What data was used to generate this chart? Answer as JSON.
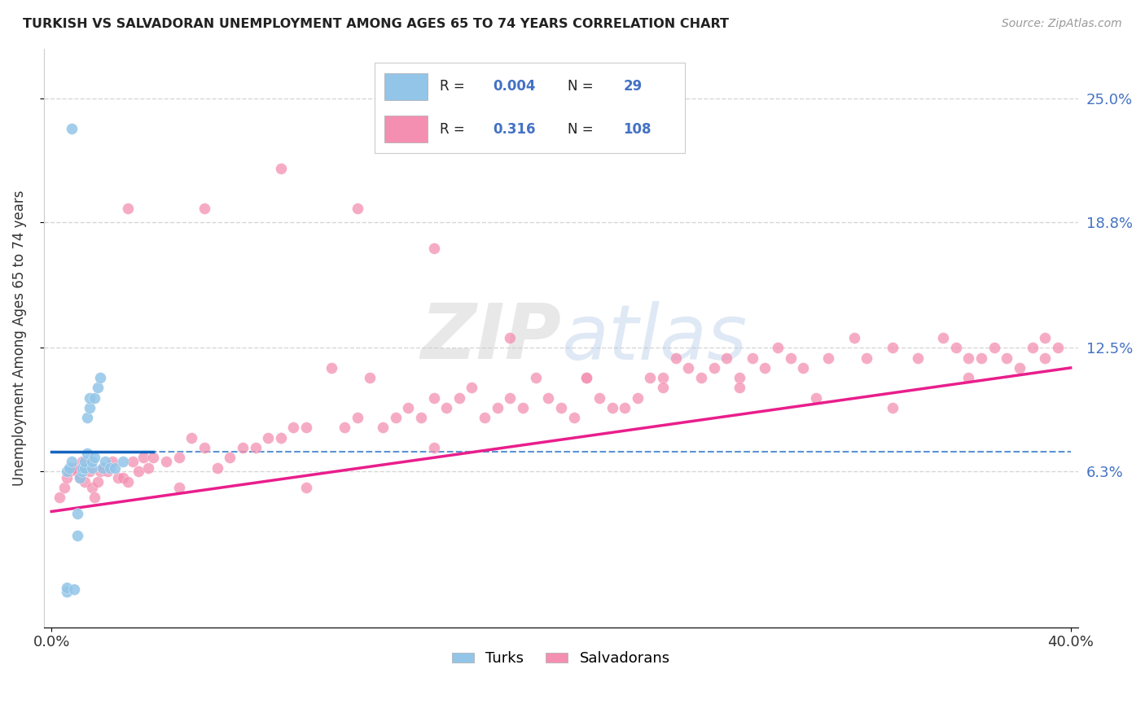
{
  "title": "TURKISH VS SALVADORAN UNEMPLOYMENT AMONG AGES 65 TO 74 YEARS CORRELATION CHART",
  "source": "Source: ZipAtlas.com",
  "ylabel": "Unemployment Among Ages 65 to 74 years",
  "xlim": [
    0.0,
    0.4
  ],
  "ylim": [
    -0.015,
    0.275
  ],
  "ytick_labels": [
    "6.3%",
    "12.5%",
    "18.8%",
    "25.0%"
  ],
  "ytick_values": [
    0.063,
    0.125,
    0.188,
    0.25
  ],
  "turks_R": "0.004",
  "turks_N": "29",
  "salvadorans_R": "0.316",
  "salvadorans_N": "108",
  "turks_color": "#92c5e8",
  "salvadorans_color": "#f48fb1",
  "turks_line_color": "#1565c0",
  "salvadorans_line_color": "#e91e8c",
  "legend_label_turks": "Turks",
  "legend_label_salvadorans": "Salvadorans",
  "watermark_text": "ZIPatlas",
  "background_color": "#ffffff",
  "grid_color": "#cccccc",
  "grid_style": "--",
  "turks_x": [
    0.006,
    0.006,
    0.006,
    0.007,
    0.008,
    0.008,
    0.009,
    0.01,
    0.01,
    0.011,
    0.012,
    0.012,
    0.013,
    0.013,
    0.014,
    0.014,
    0.015,
    0.015,
    0.016,
    0.016,
    0.017,
    0.017,
    0.018,
    0.019,
    0.02,
    0.021,
    0.023,
    0.025,
    0.028
  ],
  "turks_y": [
    0.003,
    0.005,
    0.063,
    0.065,
    0.068,
    0.235,
    0.004,
    0.031,
    0.042,
    0.06,
    0.063,
    0.065,
    0.065,
    0.068,
    0.072,
    0.09,
    0.095,
    0.1,
    0.065,
    0.068,
    0.07,
    0.1,
    0.105,
    0.11,
    0.065,
    0.068,
    0.065,
    0.065,
    0.068
  ],
  "salvadorans_x": [
    0.003,
    0.005,
    0.006,
    0.007,
    0.008,
    0.009,
    0.01,
    0.011,
    0.012,
    0.013,
    0.014,
    0.015,
    0.016,
    0.017,
    0.018,
    0.019,
    0.02,
    0.022,
    0.024,
    0.026,
    0.028,
    0.03,
    0.032,
    0.034,
    0.036,
    0.038,
    0.04,
    0.045,
    0.05,
    0.055,
    0.06,
    0.065,
    0.07,
    0.075,
    0.08,
    0.085,
    0.09,
    0.095,
    0.1,
    0.11,
    0.115,
    0.12,
    0.125,
    0.13,
    0.135,
    0.14,
    0.145,
    0.15,
    0.155,
    0.16,
    0.165,
    0.17,
    0.175,
    0.18,
    0.185,
    0.19,
    0.195,
    0.2,
    0.205,
    0.21,
    0.215,
    0.22,
    0.225,
    0.23,
    0.235,
    0.24,
    0.245,
    0.25,
    0.255,
    0.26,
    0.265,
    0.27,
    0.275,
    0.28,
    0.285,
    0.29,
    0.295,
    0.305,
    0.315,
    0.32,
    0.33,
    0.34,
    0.35,
    0.355,
    0.36,
    0.365,
    0.37,
    0.375,
    0.38,
    0.385,
    0.39,
    0.395,
    0.03,
    0.06,
    0.09,
    0.12,
    0.15,
    0.18,
    0.21,
    0.24,
    0.27,
    0.3,
    0.33,
    0.36,
    0.39,
    0.05,
    0.1,
    0.15
  ],
  "salvadorans_y": [
    0.05,
    0.055,
    0.06,
    0.063,
    0.065,
    0.065,
    0.063,
    0.06,
    0.068,
    0.058,
    0.065,
    0.063,
    0.055,
    0.05,
    0.058,
    0.063,
    0.065,
    0.063,
    0.068,
    0.06,
    0.06,
    0.058,
    0.068,
    0.063,
    0.07,
    0.065,
    0.07,
    0.068,
    0.07,
    0.08,
    0.075,
    0.065,
    0.07,
    0.075,
    0.075,
    0.08,
    0.08,
    0.085,
    0.085,
    0.115,
    0.085,
    0.09,
    0.11,
    0.085,
    0.09,
    0.095,
    0.09,
    0.1,
    0.095,
    0.1,
    0.105,
    0.09,
    0.095,
    0.1,
    0.095,
    0.11,
    0.1,
    0.095,
    0.09,
    0.11,
    0.1,
    0.095,
    0.095,
    0.1,
    0.11,
    0.11,
    0.12,
    0.115,
    0.11,
    0.115,
    0.12,
    0.11,
    0.12,
    0.115,
    0.125,
    0.12,
    0.115,
    0.12,
    0.13,
    0.12,
    0.125,
    0.12,
    0.13,
    0.125,
    0.12,
    0.12,
    0.125,
    0.12,
    0.115,
    0.125,
    0.12,
    0.125,
    0.195,
    0.195,
    0.215,
    0.195,
    0.175,
    0.13,
    0.11,
    0.105,
    0.105,
    0.1,
    0.095,
    0.11,
    0.13,
    0.055,
    0.055,
    0.075
  ],
  "turks_line_y_intercept": 0.073,
  "turks_line_slope": 0.0,
  "salv_line_y_at_0": 0.043,
  "salv_line_y_at_40pct": 0.115
}
